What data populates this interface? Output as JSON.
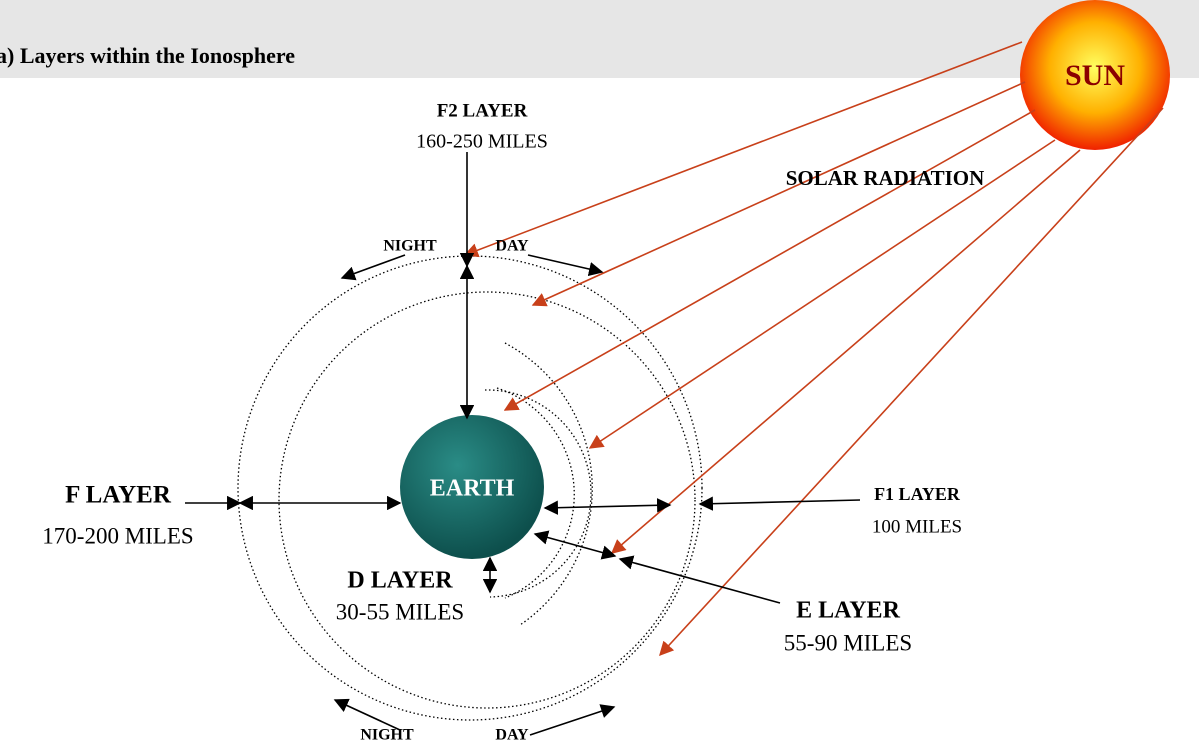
{
  "title": "a) Layers within the Ionosphere",
  "sun": {
    "label": "SUN"
  },
  "radiation": {
    "label": "SOLAR RADIATION"
  },
  "earth": {
    "label": "EARTH"
  },
  "layers": [
    {
      "name": "F2 LAYER",
      "height": "160-250 MILES"
    },
    {
      "name": "F LAYER",
      "height": "170-200 MILES"
    },
    {
      "name": "F1 LAYER",
      "height": "100 MILES"
    },
    {
      "name": "D LAYER",
      "height": "30-55 MILES"
    },
    {
      "name": "E LAYER",
      "height": "55-90 MILES"
    }
  ],
  "day_night": {
    "top": {
      "night": "NIGHT",
      "day": "DAY"
    },
    "bottom": {
      "night": "NIGHT",
      "day": "DAY"
    }
  }
}
